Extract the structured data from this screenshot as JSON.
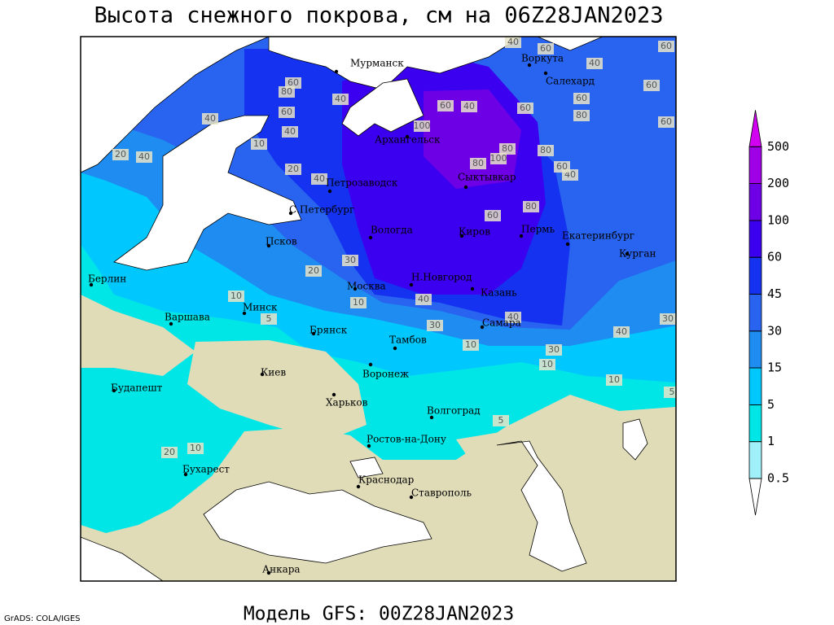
{
  "title": "Высота снежного покрова, см на 06Z28JAN2023",
  "subtitle": "Модель GFS: 00Z28JAN2023",
  "credit": "GrADS: COLA/IGES",
  "cities": [
    "Мурманск",
    "Воркута",
    "Салехард",
    "Архангельск",
    "Петрозаводск",
    "С.Петербург",
    "Сыктывкар",
    "Вологда",
    "Киров",
    "Пермь",
    "Екатеринбург",
    "Курган",
    "Псков",
    "Москва",
    "Н.Новгород",
    "Казань",
    "Берлин",
    "Варшава",
    "Минск",
    "Брянск",
    "Тамбов",
    "Самара",
    "Воронеж",
    "Киев",
    "Харьков",
    "Будапешт",
    "Волгоград",
    "Ростов-на-Дону",
    "Бухарест",
    "Краснодар",
    "Ставрополь",
    "Анкара"
  ],
  "contour_labels": [
    40,
    60,
    40,
    60,
    80,
    40,
    60,
    40,
    40,
    20,
    40,
    10,
    20,
    100,
    60,
    40,
    80,
    100,
    80,
    60,
    80,
    60,
    60,
    60,
    40,
    60,
    80,
    60,
    40,
    30,
    20,
    10,
    40,
    30,
    40,
    10,
    10,
    10,
    5,
    5,
    20,
    10,
    30,
    10,
    5,
    40,
    30,
    60,
    80
  ],
  "legend": {
    "levels": [
      0.5,
      1,
      5,
      15,
      30,
      45,
      60,
      100,
      200,
      500
    ],
    "colors": [
      "#ffffff",
      "#a0f0fa",
      "#00e6e6",
      "#00c8ff",
      "#1e8cf0",
      "#2864f0",
      "#1432f0",
      "#3c00f0",
      "#6e00e6",
      "#a000e6",
      "#d200f0"
    ]
  }
}
